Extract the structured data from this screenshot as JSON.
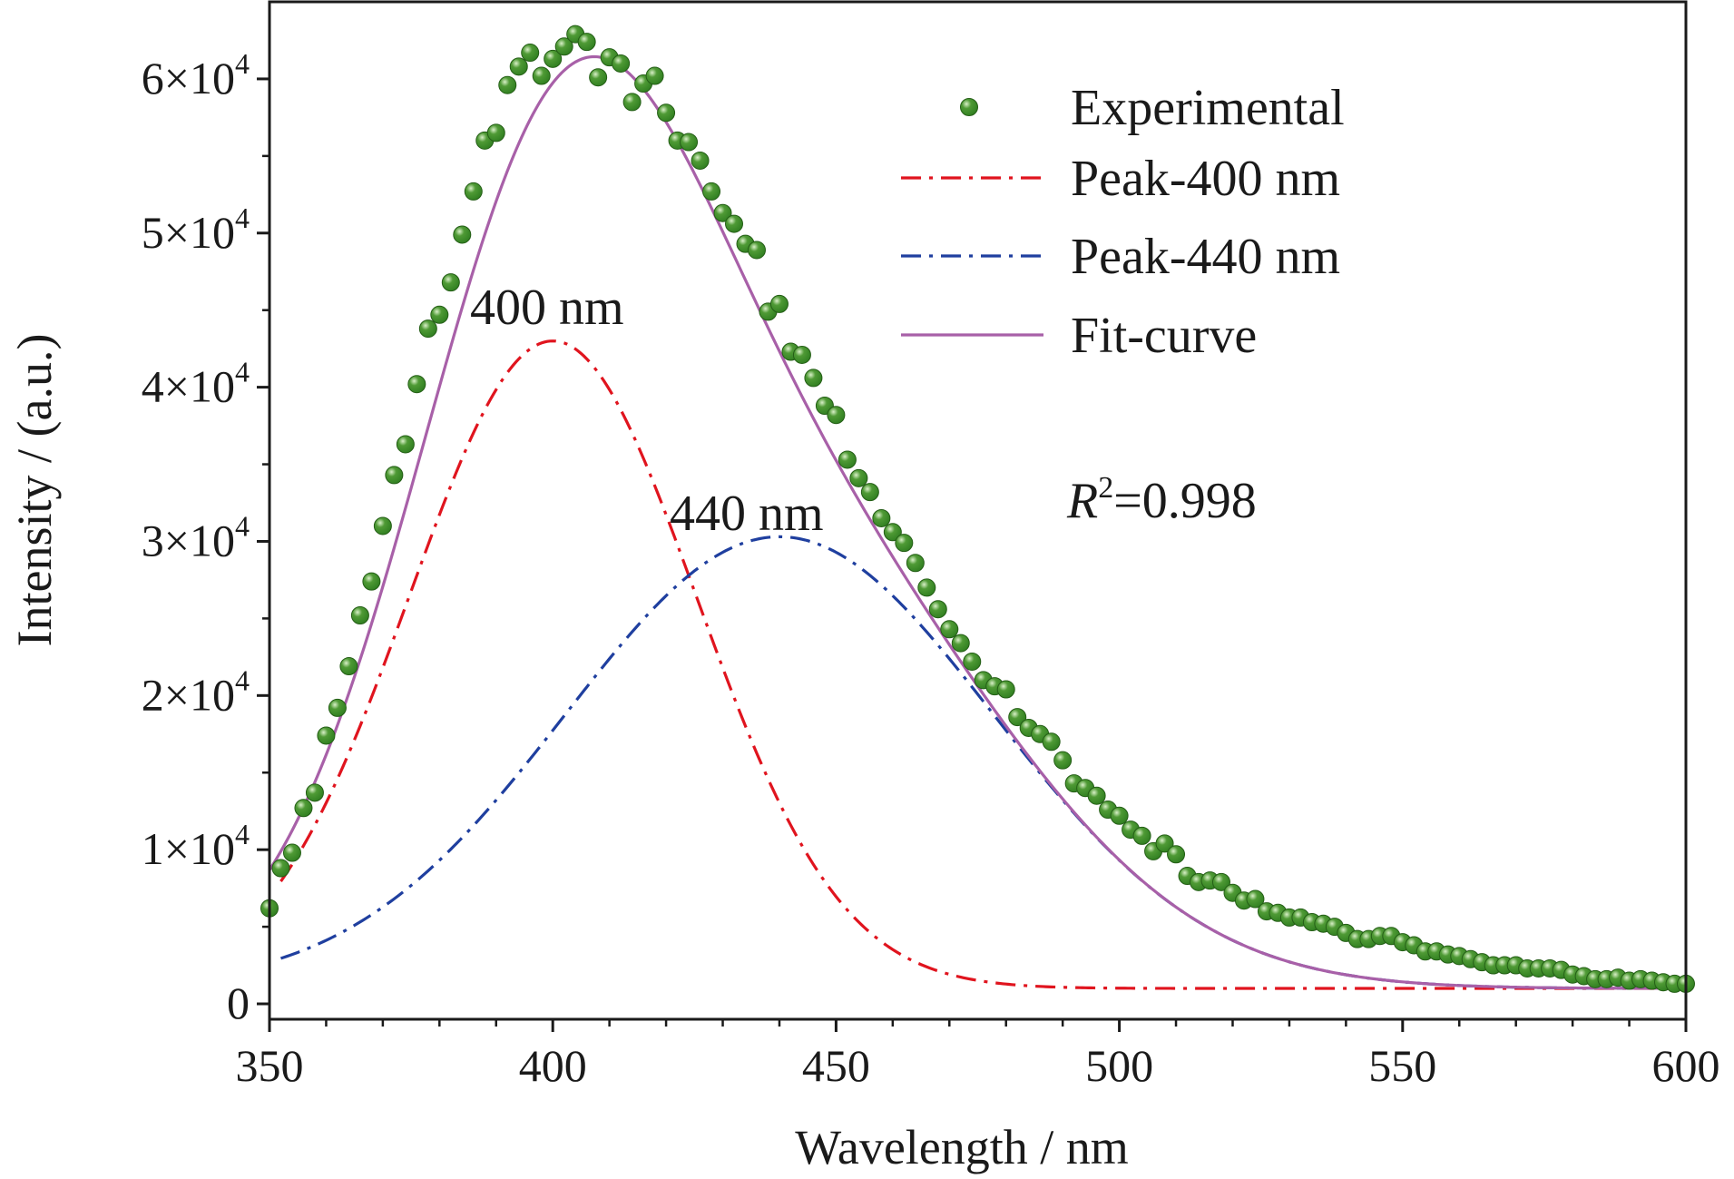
{
  "chart_data": {
    "type": "line",
    "xlabel": "Wavelength / nm",
    "ylabel": "Intensity / (a.u.)",
    "xlim": [
      350,
      600
    ],
    "ylim": [
      -1000,
      65000
    ],
    "x_ticks": [
      350,
      400,
      450,
      500,
      550,
      600
    ],
    "y_ticks": [
      {
        "value": 0,
        "base": "0",
        "exp": ""
      },
      {
        "value": 10000,
        "base": "1×10",
        "exp": "4"
      },
      {
        "value": 20000,
        "base": "2×10",
        "exp": "4"
      },
      {
        "value": 30000,
        "base": "3×10",
        "exp": "4"
      },
      {
        "value": 40000,
        "base": "4×10",
        "exp": "4"
      },
      {
        "value": 50000,
        "base": "5×10",
        "exp": "4"
      },
      {
        "value": 60000,
        "base": "6×10",
        "exp": "4"
      }
    ],
    "grid": false,
    "legend_position": "top-right",
    "colors": {
      "experimental": "#2e7d1f",
      "peak400": "#e0141e",
      "peak440": "#1f3f9f",
      "fit": "#a860a8"
    },
    "series": [
      {
        "name": "Experimental",
        "style": "markers",
        "x": [
          350,
          352,
          354,
          356,
          358,
          360,
          362,
          364,
          366,
          368,
          370,
          372,
          374,
          376,
          378,
          380,
          382,
          384,
          386,
          388,
          390,
          392,
          394,
          396,
          398,
          400,
          402,
          404,
          406,
          408,
          410,
          412,
          414,
          416,
          418,
          420,
          422,
          424,
          426,
          428,
          430,
          432,
          434,
          436,
          438,
          440,
          442,
          444,
          446,
          448,
          450,
          452,
          454,
          456,
          458,
          460,
          462,
          464,
          466,
          468,
          470,
          472,
          474,
          476,
          478,
          480,
          482,
          484,
          486,
          488,
          490,
          492,
          494,
          496,
          498,
          500,
          502,
          504,
          506,
          508,
          510,
          512,
          514,
          516,
          518,
          520,
          522,
          524,
          526,
          528,
          530,
          532,
          534,
          536,
          538,
          540,
          542,
          544,
          546,
          548,
          550,
          552,
          554,
          556,
          558,
          560,
          562,
          564,
          566,
          568,
          570,
          572,
          574,
          576,
          578,
          580,
          582,
          584,
          586,
          588,
          590,
          592,
          594,
          596,
          598,
          600
        ],
        "y": [
          6200,
          8800,
          9800,
          12700,
          13700,
          17400,
          19200,
          21900,
          25200,
          27400,
          31000,
          34300,
          36300,
          40200,
          43800,
          44700,
          46800,
          49900,
          52700,
          56000,
          56500,
          59600,
          60800,
          61700,
          60200,
          61300,
          62100,
          62900,
          62400,
          60100,
          61400,
          61000,
          58500,
          59700,
          60200,
          57800,
          56000,
          55900,
          54700,
          52700,
          51300,
          50600,
          49300,
          48900,
          44900,
          45400,
          42300,
          42100,
          40600,
          38800,
          38200,
          35300,
          34100,
          33200,
          31500,
          30600,
          29900,
          28600,
          27000,
          25600,
          24300,
          23400,
          22200,
          21000,
          20600,
          20400,
          18600,
          17900,
          17500,
          17000,
          15800,
          14300,
          14000,
          13500,
          12600,
          12200,
          11300,
          10900,
          9900,
          10400,
          9700,
          8300,
          7900,
          8000,
          7900,
          7200,
          6700,
          6800,
          6000,
          5900,
          5600,
          5600,
          5300,
          5200,
          5000,
          4600,
          4200,
          4200,
          4400,
          4400,
          4000,
          3800,
          3400,
          3400,
          3200,
          3100,
          2900,
          2700,
          2500,
          2500,
          2500,
          2300,
          2300,
          2300,
          2200,
          1900,
          1800,
          1600,
          1600,
          1700,
          1500,
          1600,
          1500,
          1400,
          1300,
          1300
        ]
      },
      {
        "name": "Peak-400 nm",
        "style": "dash-dot",
        "type": "gaussian",
        "center": 400,
        "amplitude": 42000,
        "sigma": 25.3,
        "baseline": 1000
      },
      {
        "name": "Peak-440 nm",
        "style": "dash-dot",
        "type": "gaussian",
        "center": 440,
        "amplitude": 29300,
        "sigma": 37.8,
        "baseline": 1000
      },
      {
        "name": "Fit-curve",
        "style": "solid",
        "type": "sum",
        "of": [
          "Peak-400 nm",
          "Peak-440 nm"
        ]
      }
    ],
    "annotations": {
      "peak400": "400 nm",
      "peak440": "440 nm"
    },
    "r2": {
      "symbol": "R",
      "exp": "2",
      "value": "=0.998"
    }
  }
}
